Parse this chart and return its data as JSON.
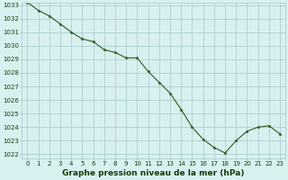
{
  "x": [
    0,
    1,
    2,
    3,
    4,
    5,
    6,
    7,
    8,
    9,
    10,
    11,
    12,
    13,
    14,
    15,
    16,
    17,
    18,
    19,
    20,
    21,
    22,
    23
  ],
  "y": [
    1033.2,
    1032.6,
    1032.2,
    1031.6,
    1031.0,
    1030.5,
    1030.3,
    1029.7,
    1029.5,
    1029.1,
    1029.1,
    1028.1,
    1027.3,
    1026.5,
    1025.3,
    1024.0,
    1023.1,
    1022.5,
    1022.1,
    1023.0,
    1023.7,
    1024.0,
    1024.1,
    1023.5
  ],
  "line_color": "#2d5a1b",
  "marker_color": "#2d5a1b",
  "bg_color": "#d9f0f0",
  "grid_color": "#a8c8c8",
  "bottom_label": "Graphe pression niveau de la mer (hPa)",
  "ylim_min": 1022,
  "ylim_max": 1033,
  "title_color": "#1a3a0a",
  "label_fontsize": 6.5,
  "tick_fontsize": 5.0,
  "line_width": 0.8,
  "marker_size": 2.5
}
